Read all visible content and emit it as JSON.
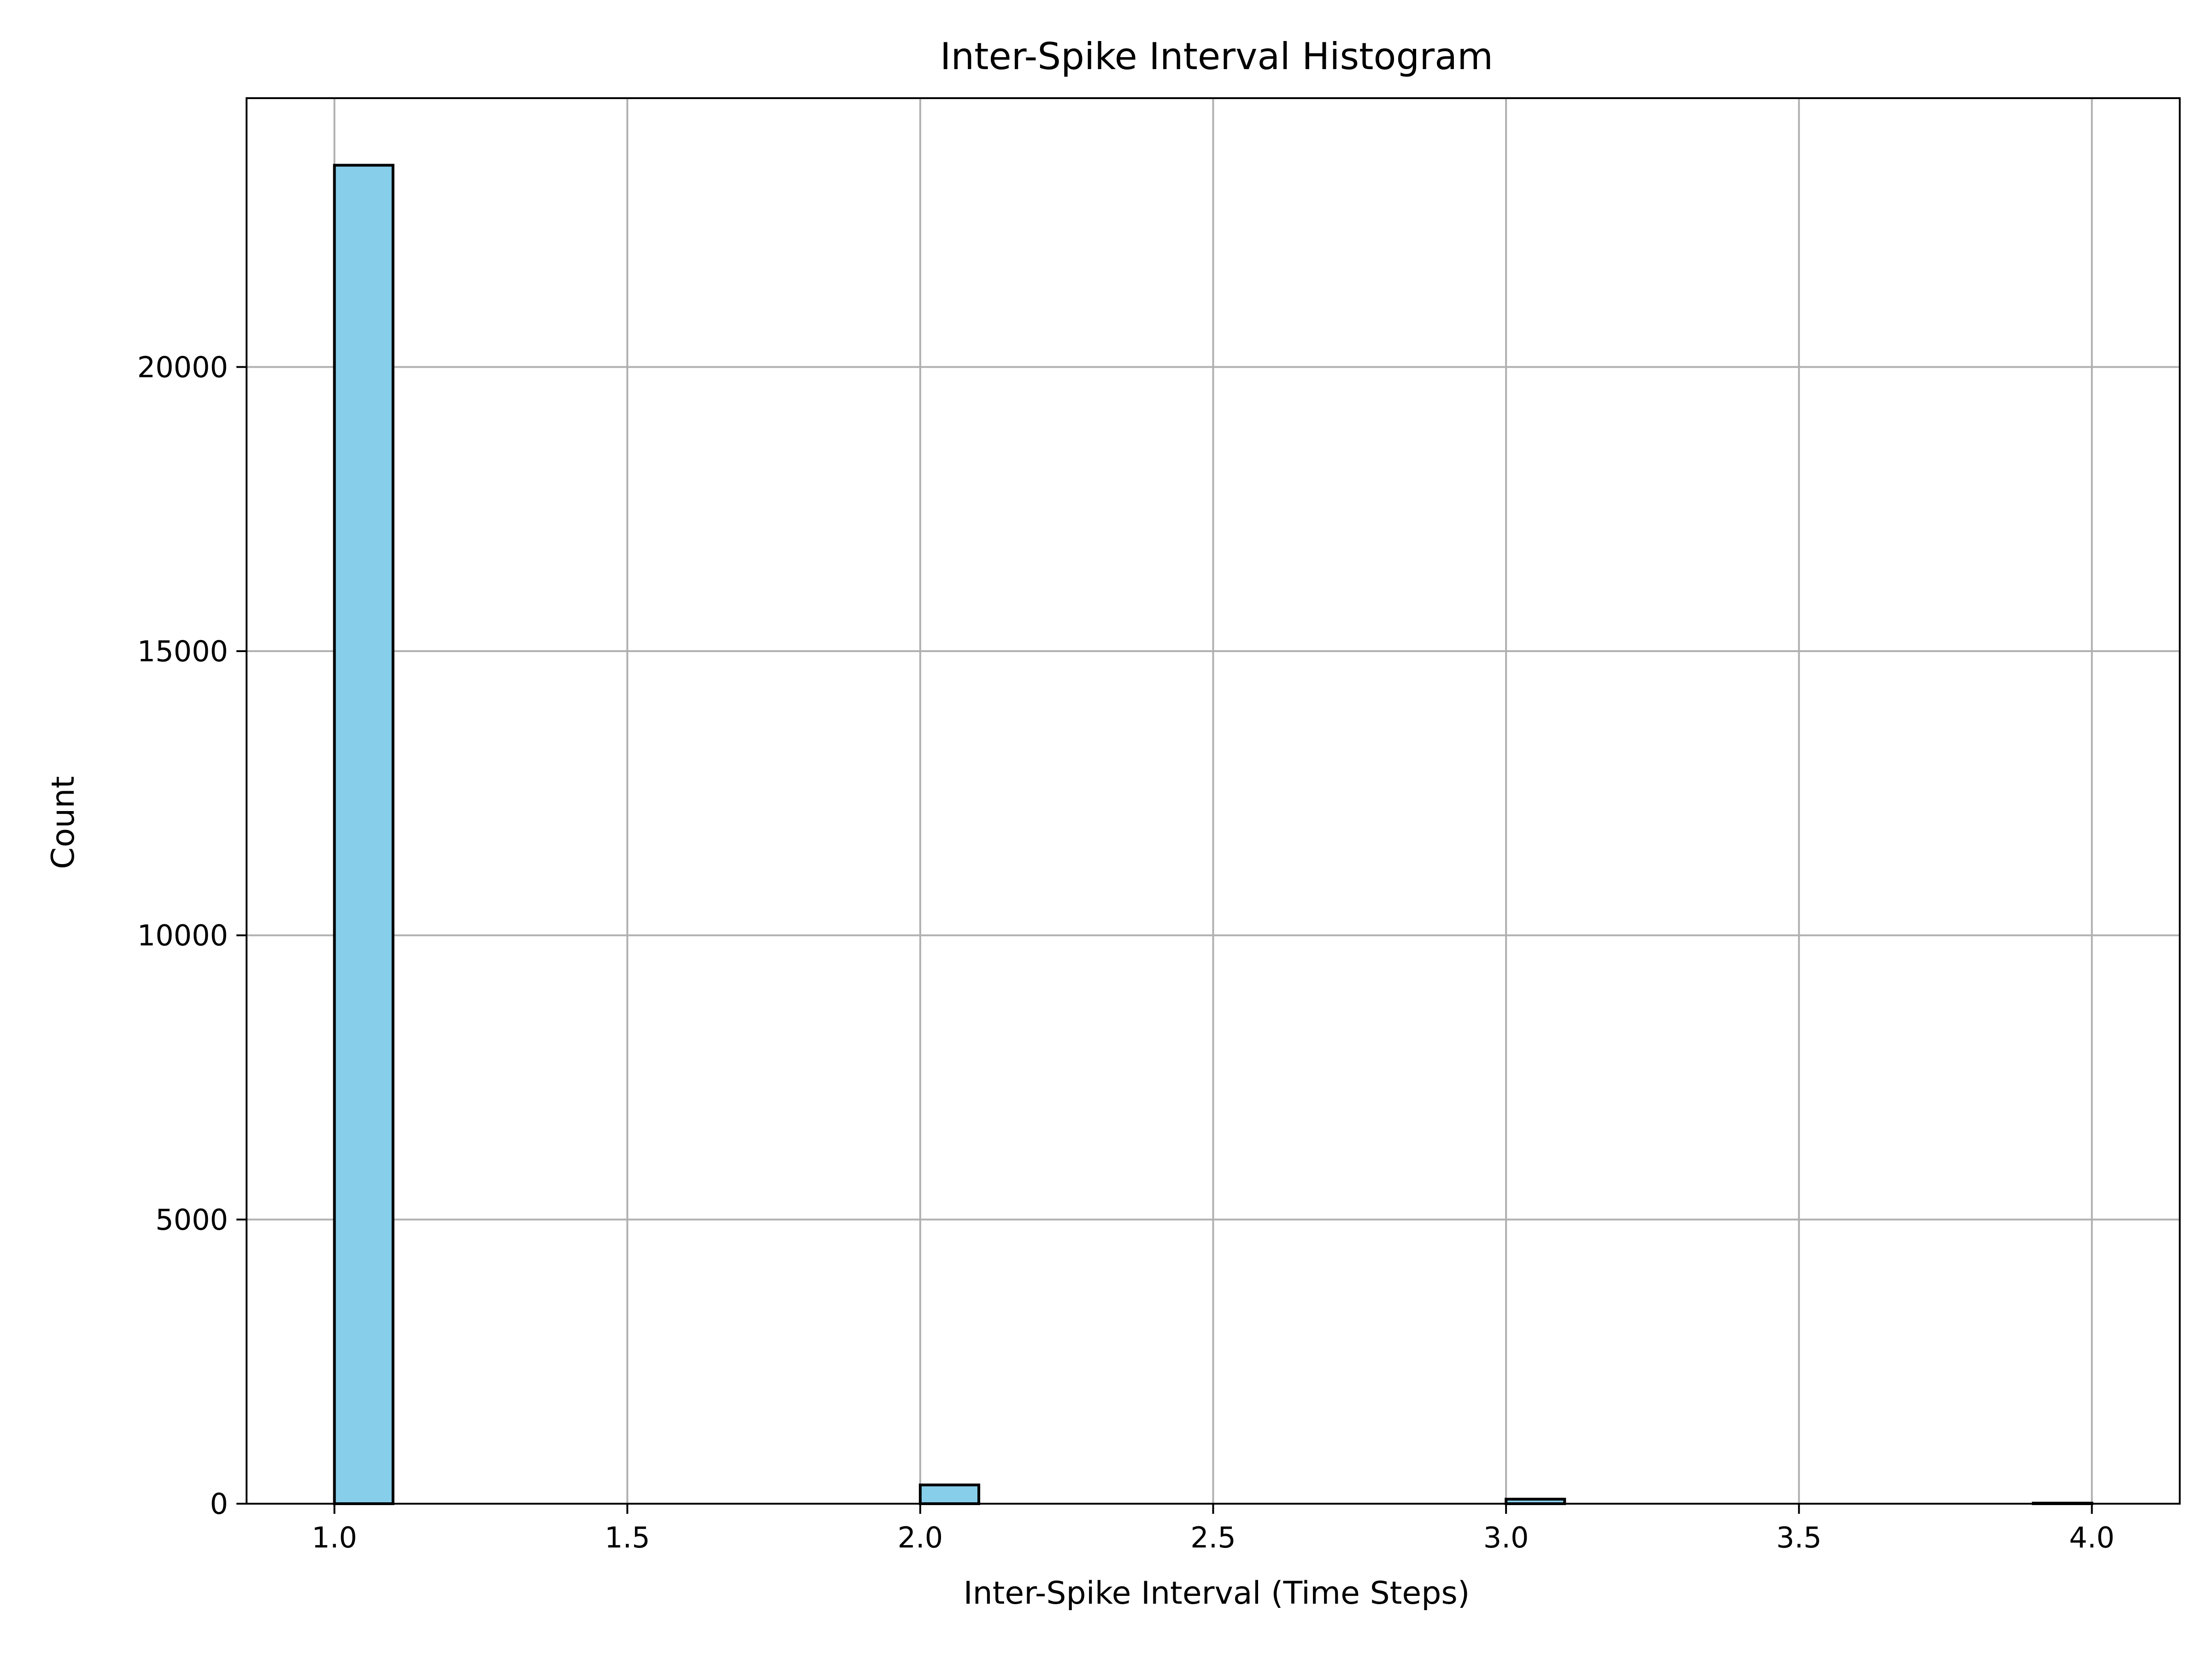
{
  "chart_data": {
    "type": "bar",
    "title": "Inter-Spike Interval Histogram",
    "xlabel": "Inter-Spike Interval (Time Steps)",
    "ylabel": "Count",
    "xlim": [
      0.85,
      4.15
    ],
    "ylim": [
      0,
      24730
    ],
    "bin_width": 0.1,
    "bins": [
      {
        "x0": 1.0,
        "x1": 1.1,
        "count": 23550
      },
      {
        "x0": 2.0,
        "x1": 2.1,
        "count": 330
      },
      {
        "x0": 3.0,
        "x1": 3.1,
        "count": 80
      },
      {
        "x0": 3.9,
        "x1": 4.0,
        "count": 10
      }
    ],
    "x_ticks": [
      {
        "value": 1.0,
        "label": "1.0"
      },
      {
        "value": 1.5,
        "label": "1.5"
      },
      {
        "value": 2.0,
        "label": "2.0"
      },
      {
        "value": 2.5,
        "label": "2.5"
      },
      {
        "value": 3.0,
        "label": "3.0"
      },
      {
        "value": 3.5,
        "label": "3.5"
      },
      {
        "value": 4.0,
        "label": "4.0"
      }
    ],
    "y_ticks": [
      {
        "value": 0,
        "label": "0"
      },
      {
        "value": 5000,
        "label": "5000"
      },
      {
        "value": 10000,
        "label": "10000"
      },
      {
        "value": 15000,
        "label": "15000"
      },
      {
        "value": 20000,
        "label": "20000"
      }
    ],
    "grid": true,
    "bar_color": "#87ceeb",
    "edge_color": "#000000",
    "grid_color": "#b0b0b0"
  }
}
